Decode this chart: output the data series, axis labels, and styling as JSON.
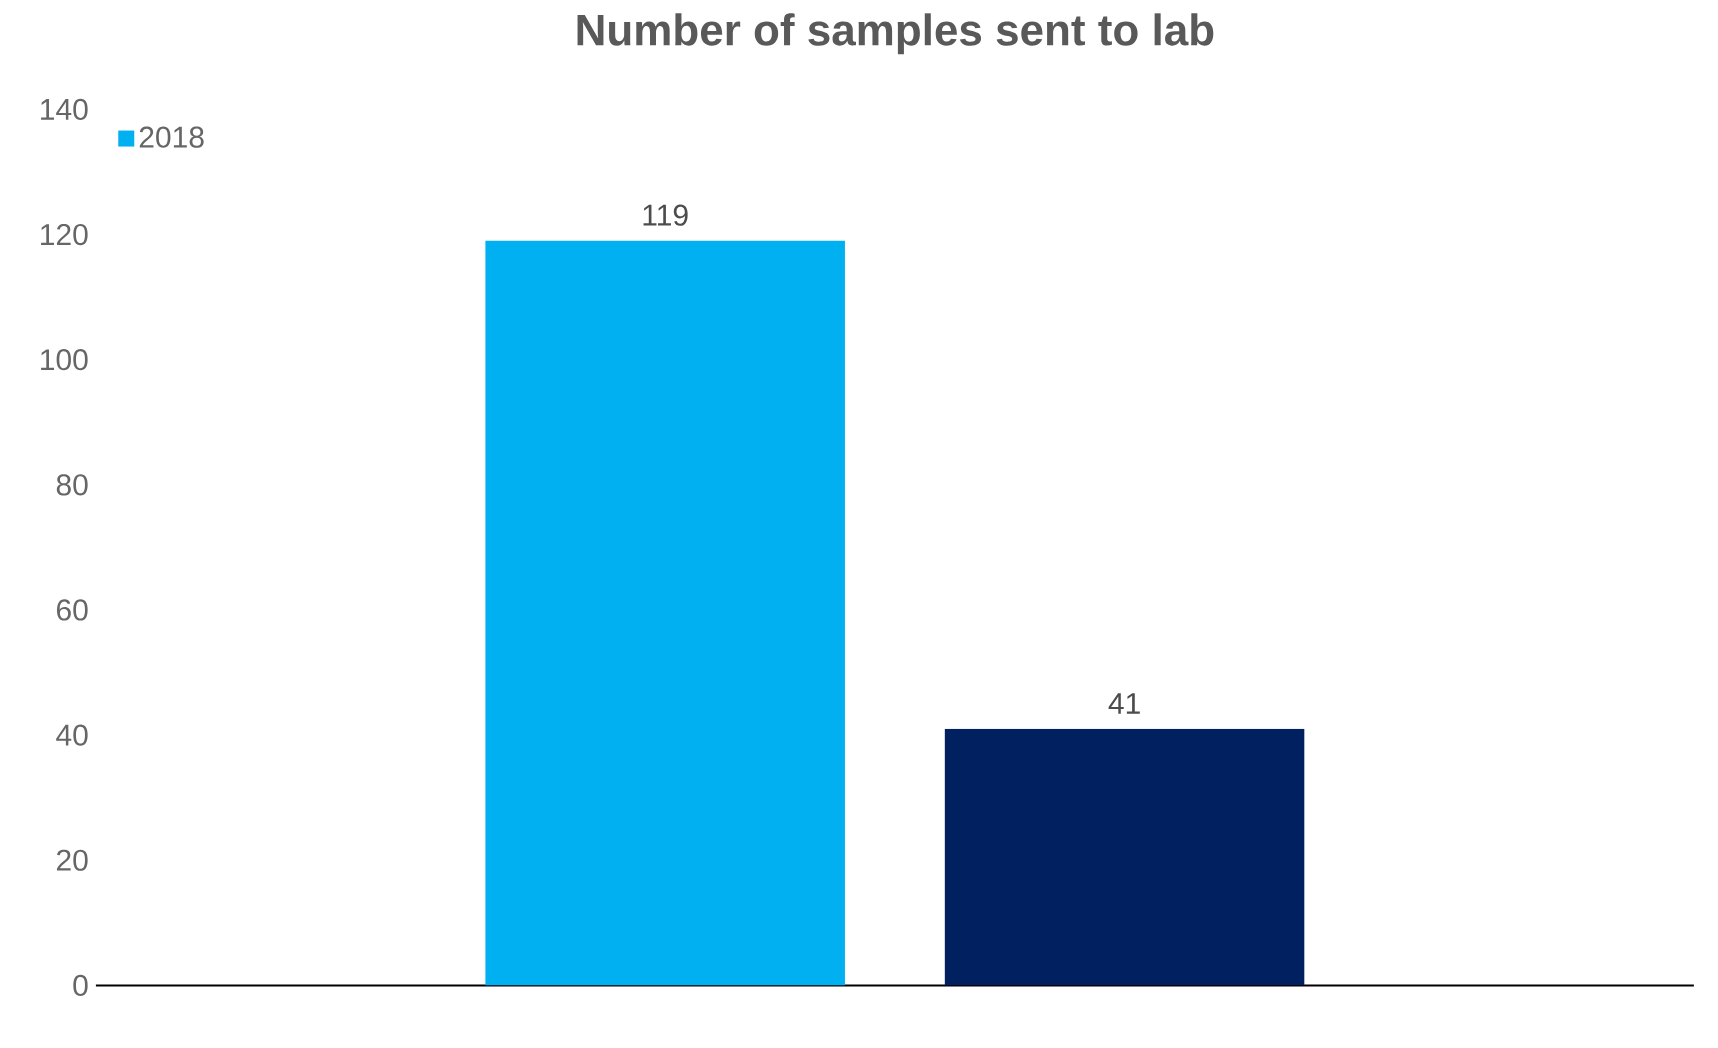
{
  "chart_data": {
    "type": "bar",
    "title": "Number of samples sent to lab",
    "categories": [
      null
    ],
    "series": [
      {
        "name": "2018",
        "color": "#00b0f0",
        "values": [
          119
        ]
      },
      {
        "color": "#002060",
        "values": [
          41
        ]
      }
    ],
    "ylim": [
      0,
      140
    ],
    "yticks": [
      0,
      20,
      40,
      60,
      80,
      100,
      120,
      140
    ],
    "data_labels": true,
    "legend": "top left",
    "grid": false
  }
}
